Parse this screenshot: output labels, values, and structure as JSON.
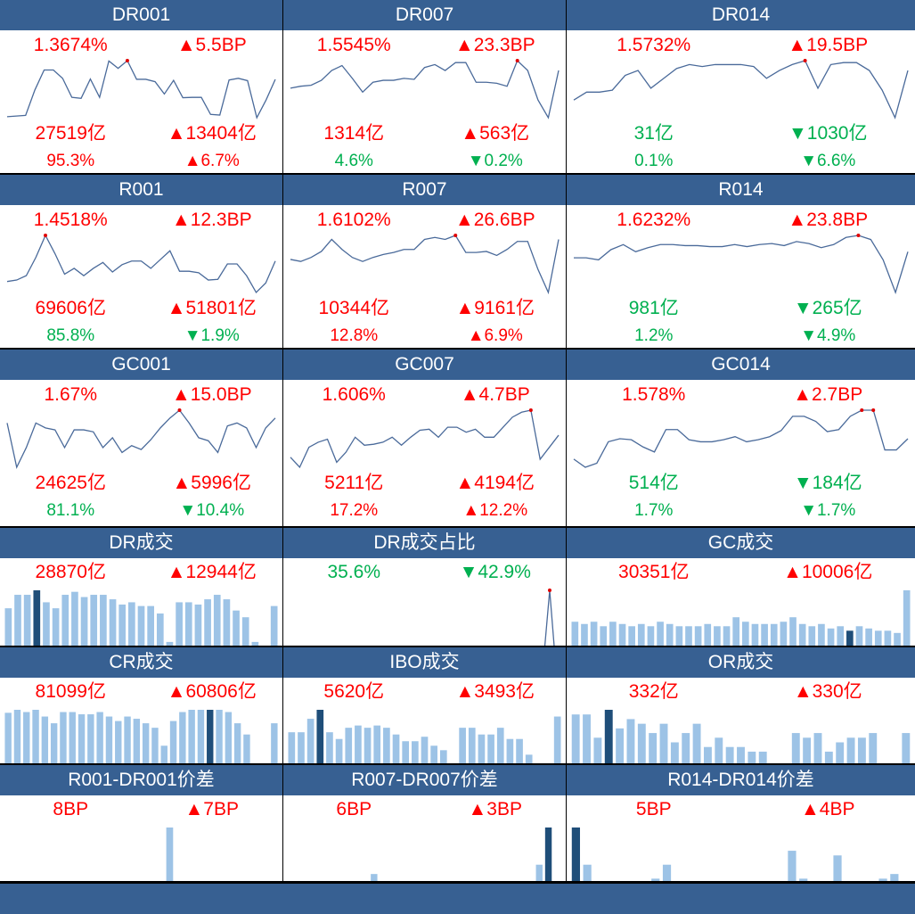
{
  "colors": {
    "header": "#376092",
    "up": "#ff0000",
    "down": "#00b050",
    "bar": "#9dc3e6",
    "bar_current": "#1f4e79",
    "line": "#4a6a9a",
    "marker": "#e00000"
  },
  "rows": [
    [
      {
        "title": "DR001",
        "type": "rate",
        "rate": {
          "text": "1.3674%",
          "color": "red"
        },
        "rate_chg": {
          "text": "▲5.5BP",
          "color": "red"
        },
        "vol": {
          "text": "27519亿",
          "color": "red"
        },
        "vol_chg": {
          "text": "▲13404亿",
          "color": "red"
        },
        "share": {
          "text": "95.3%",
          "color": "red"
        },
        "share_chg": {
          "text": "▲6.7%",
          "color": "red"
        },
        "series": [
          20,
          22,
          24,
          100,
          160,
          160,
          135,
          78,
          75,
          133,
          78,
          187,
          165,
          188,
          132,
          132,
          125,
          88,
          129,
          77,
          78,
          78,
          27,
          25,
          130,
          135,
          128,
          17,
          70,
          132
        ]
      },
      {
        "title": "DR007",
        "type": "rate",
        "rate": {
          "text": "1.5545%",
          "color": "red"
        },
        "rate_chg": {
          "text": "▲23.3BP",
          "color": "red"
        },
        "vol": {
          "text": "1314亿",
          "color": "red"
        },
        "vol_chg": {
          "text": "▲563亿",
          "color": "red"
        },
        "share": {
          "text": "4.6%",
          "color": "green"
        },
        "share_chg": {
          "text": "▼0.2%",
          "color": "green"
        },
        "series": [
          102,
          104,
          105,
          110,
          120,
          125,
          112,
          98,
          108,
          110,
          110,
          112,
          111,
          123,
          126,
          120,
          128,
          128,
          108,
          108,
          107,
          104,
          130,
          120,
          90,
          72,
          120
        ]
      },
      {
        "title": "DR014",
        "type": "rate",
        "rate": {
          "text": "1.5732%",
          "color": "red"
        },
        "rate_chg": {
          "text": "▲19.5BP",
          "color": "red"
        },
        "vol": {
          "text": "31亿",
          "color": "green"
        },
        "vol_chg": {
          "text": "▼1030亿",
          "color": "green"
        },
        "share": {
          "text": "0.1%",
          "color": "green"
        },
        "share_chg": {
          "text": "▼6.6%",
          "color": "green"
        },
        "series": [
          90,
          98,
          98,
          100,
          115,
          120,
          102,
          112,
          122,
          126,
          124,
          126,
          126,
          126,
          124,
          112,
          120,
          126,
          130,
          102,
          126,
          128,
          128,
          120,
          100,
          72,
          120
        ]
      }
    ],
    [
      {
        "title": "R001",
        "type": "rate",
        "rate": {
          "text": "1.4518%",
          "color": "red"
        },
        "rate_chg": {
          "text": "▲12.3BP",
          "color": "red"
        },
        "vol": {
          "text": "69606亿",
          "color": "red"
        },
        "vol_chg": {
          "text": "▲51801亿",
          "color": "red"
        },
        "share": {
          "text": "85.8%",
          "color": "green"
        },
        "share_chg": {
          "text": "▼1.9%",
          "color": "green"
        },
        "series": [
          92,
          94,
          100,
          125,
          155,
          130,
          102,
          110,
          100,
          110,
          118,
          105,
          115,
          120,
          120,
          110,
          122,
          134,
          106,
          106,
          104,
          94,
          95,
          116,
          116,
          100,
          77,
          90,
          120
        ]
      },
      {
        "title": "R007",
        "type": "rate",
        "rate": {
          "text": "1.6102%",
          "color": "red"
        },
        "rate_chg": {
          "text": "▲26.6BP",
          "color": "red"
        },
        "vol": {
          "text": "10344亿",
          "color": "red"
        },
        "vol_chg": {
          "text": "▲9161亿",
          "color": "red"
        },
        "share": {
          "text": "12.8%",
          "color": "red"
        },
        "share_chg": {
          "text": "▲6.9%",
          "color": "red"
        },
        "series": [
          110,
          108,
          112,
          118,
          130,
          120,
          112,
          108,
          112,
          115,
          117,
          120,
          120,
          130,
          132,
          130,
          134,
          117,
          117,
          118,
          114,
          120,
          128,
          128,
          100,
          77,
          130
        ]
      },
      {
        "title": "R014",
        "type": "rate",
        "rate": {
          "text": "1.6232%",
          "color": "red"
        },
        "rate_chg": {
          "text": "▲23.8BP",
          "color": "red"
        },
        "vol": {
          "text": "981亿",
          "color": "green"
        },
        "vol_chg": {
          "text": "▼265亿",
          "color": "green"
        },
        "share": {
          "text": "1.2%",
          "color": "green"
        },
        "share_chg": {
          "text": "▼4.9%",
          "color": "green"
        },
        "series": [
          112,
          112,
          110,
          120,
          125,
          118,
          122,
          125,
          125,
          124,
          124,
          123,
          123,
          125,
          123,
          125,
          126,
          124,
          128,
          126,
          122,
          125,
          132,
          134,
          130,
          110,
          78,
          118
        ]
      }
    ],
    [
      {
        "title": "GC001",
        "type": "rate",
        "rate": {
          "text": "1.67%",
          "color": "red"
        },
        "rate_chg": {
          "text": "▲15.0BP",
          "color": "red"
        },
        "vol": {
          "text": "24625亿",
          "color": "red"
        },
        "vol_chg": {
          "text": "▲5996亿",
          "color": "red"
        },
        "share": {
          "text": "81.1%",
          "color": "green"
        },
        "share_chg": {
          "text": "▼10.4%",
          "color": "green"
        },
        "series": [
          125,
          80,
          100,
          125,
          120,
          118,
          100,
          118,
          118,
          116,
          100,
          110,
          95,
          102,
          98,
          108,
          120,
          130,
          138,
          125,
          110,
          107,
          95,
          122,
          125,
          120,
          100,
          120,
          130
        ]
      },
      {
        "title": "GC007",
        "type": "rate",
        "rate": {
          "text": "1.606%",
          "color": "red"
        },
        "rate_chg": {
          "text": "▲4.7BP",
          "color": "red"
        },
        "vol": {
          "text": "5211亿",
          "color": "red"
        },
        "vol_chg": {
          "text": "▲4194亿",
          "color": "red"
        },
        "share": {
          "text": "17.2%",
          "color": "red"
        },
        "share_chg": {
          "text": "▲12.2%",
          "color": "red"
        },
        "series": [
          90,
          80,
          100,
          105,
          108,
          85,
          95,
          110,
          102,
          103,
          105,
          110,
          102,
          110,
          117,
          118,
          110,
          120,
          120,
          115,
          118,
          110,
          110,
          120,
          130,
          135,
          137,
          88,
          100,
          112
        ]
      },
      {
        "title": "GC014",
        "type": "rate",
        "rate": {
          "text": "1.578%",
          "color": "red"
        },
        "rate_chg": {
          "text": "▲2.7BP",
          "color": "red"
        },
        "vol": {
          "text": "514亿",
          "color": "green"
        },
        "vol_chg": {
          "text": "▼184亿",
          "color": "green"
        },
        "share": {
          "text": "1.7%",
          "color": "green"
        },
        "share_chg": {
          "text": "▼1.7%",
          "color": "green"
        },
        "series": [
          88,
          80,
          84,
          105,
          108,
          107,
          100,
          95,
          117,
          117,
          107,
          105,
          105,
          107,
          110,
          105,
          107,
          110,
          116,
          130,
          130,
          125,
          115,
          117,
          130,
          136,
          136,
          97,
          97,
          108
        ]
      }
    ],
    [
      {
        "title": "DR成交",
        "type": "bar",
        "left": {
          "text": "28870亿",
          "color": "red"
        },
        "right": {
          "text": "▲12944亿",
          "color": "red"
        },
        "current": 3,
        "series": [
          150,
          168,
          168,
          174,
          158,
          150,
          168,
          172,
          165,
          168,
          168,
          162,
          155,
          158,
          153,
          153,
          143,
          105,
          158,
          158,
          155,
          162,
          168,
          162,
          147,
          138,
          105,
          83,
          153
        ]
      },
      {
        "title": "DR成交占比",
        "type": "line",
        "left": {
          "text": "35.6%",
          "color": "green"
        },
        "right": {
          "text": "▼42.9%",
          "color": "green"
        },
        "series": [
          5,
          8,
          9,
          9,
          8,
          6,
          7,
          8,
          8,
          8,
          8,
          8,
          7,
          7,
          7,
          8,
          8,
          8,
          8,
          7,
          7,
          4,
          7,
          6,
          7,
          8,
          8,
          9,
          11,
          58,
          7
        ]
      },
      {
        "title": "GC成交",
        "type": "bar",
        "left": {
          "text": "30351亿",
          "color": "red"
        },
        "right": {
          "text": "▲10006亿",
          "color": "red"
        },
        "current": 29,
        "series": [
          44,
          43,
          44,
          42,
          44,
          43,
          42,
          43,
          42,
          44,
          43,
          42,
          42,
          42,
          43,
          42,
          42,
          46,
          44,
          43,
          43,
          43,
          44,
          46,
          43,
          42,
          43,
          41,
          42,
          40,
          42,
          41,
          40,
          40,
          39,
          58
        ]
      }
    ],
    [
      {
        "title": "CR成交",
        "type": "bar",
        "left": {
          "text": "81099亿",
          "color": "red"
        },
        "right": {
          "text": "▲60806亿",
          "color": "red"
        },
        "current": 22,
        "series": [
          170,
          174,
          171,
          174,
          165,
          156,
          171,
          171,
          168,
          168,
          171,
          165,
          159,
          165,
          162,
          156,
          150,
          126,
          159,
          171,
          174,
          174,
          174,
          174,
          171,
          156,
          141,
          99,
          39,
          156
        ]
      },
      {
        "title": "IBO成交",
        "type": "bar",
        "left": {
          "text": "5620亿",
          "color": "red"
        },
        "right": {
          "text": "▲3493亿",
          "color": "red"
        },
        "current": 3,
        "series": [
          48,
          48,
          54,
          58,
          48,
          45,
          50,
          51,
          50,
          51,
          50,
          47,
          44,
          44,
          46,
          42,
          40,
          22,
          50,
          50,
          47,
          47,
          50,
          45,
          45,
          38,
          22,
          22,
          55
        ]
      },
      {
        "title": "OR成交",
        "type": "bar",
        "left": {
          "text": "332亿",
          "color": "red"
        },
        "right": {
          "text": "▲330亿",
          "color": "red"
        },
        "current": 3,
        "series": [
          54,
          54,
          44,
          56,
          48,
          52,
          50,
          46,
          50,
          42,
          46,
          50,
          40,
          44,
          40,
          40,
          38,
          38,
          22,
          30,
          46,
          44,
          46,
          38,
          42,
          44,
          44,
          46,
          16,
          2,
          46
        ]
      }
    ],
    [
      {
        "title": "R001-DR001价差",
        "type": "bar",
        "left": {
          "text": "8BP",
          "color": "red"
        },
        "right": {
          "text": "▲7BP",
          "color": "red"
        },
        "current": 19,
        "series": [
          22,
          24,
          24,
          20,
          25,
          32,
          16,
          18,
          18,
          16,
          24,
          22,
          22,
          23,
          25,
          24,
          24,
          56,
          23,
          26,
          25,
          24,
          28,
          30,
          28,
          28,
          22,
          6,
          6
        ]
      },
      {
        "title": "R007-DR007价差",
        "type": "bar",
        "left": {
          "text": "6BP",
          "color": "red"
        },
        "right": {
          "text": "▲3BP",
          "color": "red"
        },
        "current": 28,
        "series": [
          18,
          20,
          26,
          22,
          20,
          16,
          14,
          18,
          22,
          36,
          25,
          22,
          20,
          20,
          22,
          23,
          26,
          22,
          20,
          25,
          26,
          30,
          33,
          28,
          15,
          20,
          30,
          40,
          56,
          12
        ]
      },
      {
        "title": "R014-DR014价差",
        "type": "bar",
        "left": {
          "text": "5BP",
          "color": "red"
        },
        "right": {
          "text": "▲4BP",
          "color": "red"
        },
        "current": 0,
        "series": [
          56,
          40,
          28,
          28,
          20,
          14,
          14,
          34,
          40,
          24,
          14,
          14,
          8,
          4,
          4,
          4,
          4,
          4,
          4,
          46,
          34,
          20,
          12,
          44,
          6,
          24,
          26,
          34,
          36,
          4
        ]
      }
    ]
  ]
}
